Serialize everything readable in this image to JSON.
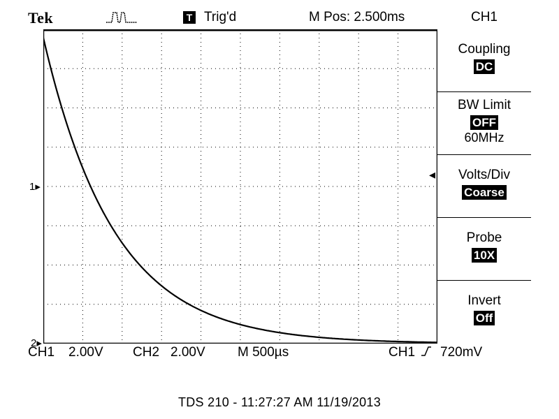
{
  "header": {
    "brand": "Tek",
    "trigger_badge": "T",
    "trigger_status": "Trig'd",
    "position": "M Pos: 2.500ms",
    "channel": "CH1"
  },
  "side_menu": [
    {
      "label": "Coupling",
      "value": "DC",
      "sub": ""
    },
    {
      "label": "BW Limit",
      "value": "OFF",
      "sub": "60MHz"
    },
    {
      "label": "Volts/Div",
      "value": "Coarse",
      "sub": ""
    },
    {
      "label": "Probe",
      "value": "10X",
      "sub": ""
    },
    {
      "label": "Invert",
      "value": "Off",
      "sub": ""
    }
  ],
  "markers": {
    "ch1_level": "1",
    "ch2_level": "2"
  },
  "status": {
    "ch1_label": "CH1",
    "ch1_scale": "2.00V",
    "ch2_label": "CH2",
    "ch2_scale": "2.00V",
    "timebase": "M 500µs",
    "trigger_source": "CH1",
    "trigger_slope_icon": "rising-edge-icon",
    "trigger_level": "720mV"
  },
  "caption": "TDS 210 - 11:27:27 AM   11/19/2013",
  "waveform": {
    "description_type": "exponential-decay",
    "start_fraction": 0.0,
    "time_constant_divisions": 1.8
  }
}
